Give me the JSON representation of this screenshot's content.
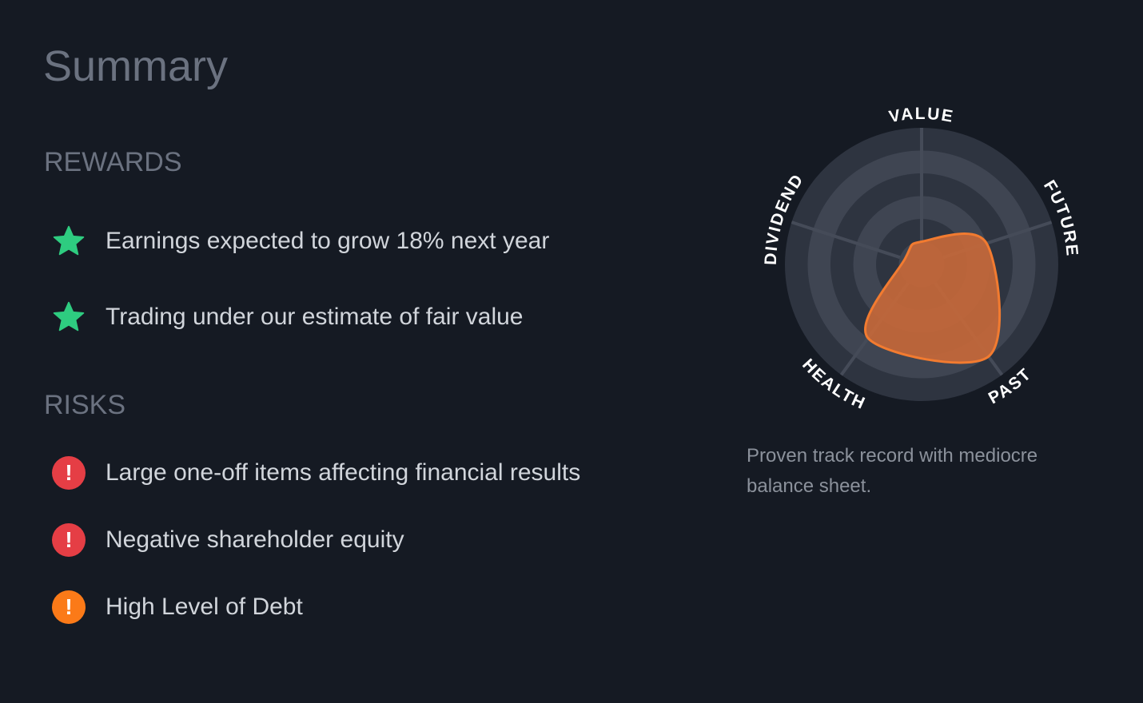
{
  "title": "Summary",
  "rewards": {
    "heading": "REWARDS",
    "items": [
      {
        "text": "Earnings expected to grow 18% next year",
        "icon": "star-icon"
      },
      {
        "text": "Trading under our estimate of fair value",
        "icon": "star-icon"
      }
    ]
  },
  "risks": {
    "heading": "RISKS",
    "items": [
      {
        "text": "Large one-off items affecting financial results",
        "icon": "exclamation-icon",
        "severity": "major"
      },
      {
        "text": "Negative shareholder equity",
        "icon": "exclamation-icon",
        "severity": "major"
      },
      {
        "text": "High Level of Debt",
        "icon": "exclamation-icon",
        "severity": "minor"
      }
    ]
  },
  "colors": {
    "reward": "#2ecc80",
    "major_risk": "#e53e45",
    "minor_risk": "#fb7a18",
    "snowflake_fill": "#c5683a",
    "snowflake_stroke": "#f27b30"
  },
  "snowflake_caption": "Proven track record with mediocre balance sheet.",
  "chart_data": {
    "type": "radar",
    "axes": [
      "VALUE",
      "FUTURE",
      "PAST",
      "HEALTH",
      "DIVIDEND"
    ],
    "values": [
      1,
      3,
      5,
      4,
      0
    ],
    "range": [
      0,
      6
    ]
  }
}
